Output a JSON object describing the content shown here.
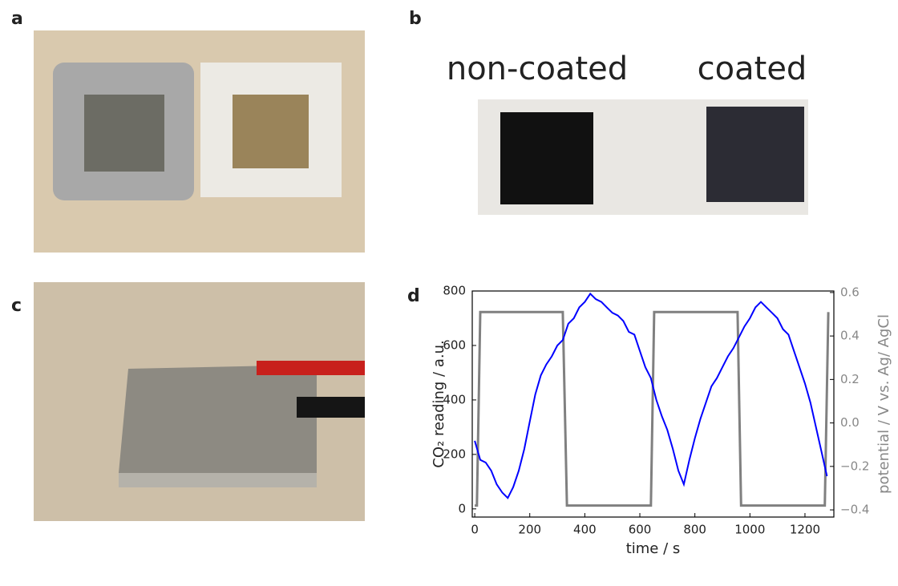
{
  "panels": {
    "a": "a",
    "b": "b",
    "c": "c",
    "d": "d"
  },
  "captions": {
    "non_coated": "non-coated",
    "coated": "coated"
  },
  "chart_data": {
    "type": "line",
    "x_label": "time / s",
    "y_label": "CO₂ reading / a.u.",
    "y2_label": "potential / V vs. Ag/ AgCl",
    "xlim": [
      -9,
      1305
    ],
    "xticks": [
      0,
      200,
      400,
      600,
      800,
      1000,
      1200
    ],
    "ylim": [
      -30,
      800
    ],
    "yticks": [
      0,
      200,
      400,
      600,
      800
    ],
    "y2lim": [
      -0.433,
      0.607
    ],
    "y2ticks": [
      {
        "value": -0.4,
        "label": "−0.4"
      },
      {
        "value": -0.2,
        "label": "−0.2"
      },
      {
        "value": 0,
        "label": "0.0"
      },
      0.2,
      0.4,
      0.6
    ],
    "series": [
      {
        "color": "#0000ff",
        "axis": "y",
        "x": [
          0,
          20,
          40,
          60,
          80,
          100,
          120,
          140,
          160,
          180,
          200,
          220,
          240,
          260,
          280,
          300,
          320,
          340,
          360,
          380,
          400,
          420,
          440,
          460,
          480,
          500,
          520,
          540,
          560,
          580,
          600,
          620,
          640,
          660,
          680,
          700,
          720,
          740,
          760,
          780,
          800,
          820,
          840,
          860,
          880,
          900,
          920,
          940,
          960,
          980,
          1000,
          1020,
          1040,
          1060,
          1080,
          1100,
          1120,
          1140,
          1160,
          1180,
          1200,
          1220,
          1240,
          1260,
          1280
        ],
        "values": [
          250,
          180,
          170,
          140,
          90,
          60,
          40,
          80,
          140,
          220,
          320,
          420,
          490,
          530,
          560,
          600,
          620,
          680,
          700,
          740,
          760,
          790,
          770,
          760,
          740,
          720,
          710,
          690,
          650,
          640,
          580,
          520,
          480,
          400,
          340,
          290,
          220,
          140,
          90,
          180,
          260,
          330,
          390,
          450,
          480,
          520,
          560,
          590,
          630,
          670,
          700,
          740,
          760,
          740,
          720,
          700,
          660,
          640,
          580,
          520,
          460,
          390,
          300,
          210,
          120
        ]
      },
      {
        "color": "#808080",
        "axis": "y2",
        "x": [
          0,
          8,
          20,
          320,
          335,
          640,
          652,
          955,
          968,
          1272,
          1285
        ],
        "values": [
          -0.38,
          -0.38,
          0.51,
          0.51,
          -0.38,
          -0.38,
          0.51,
          0.51,
          -0.38,
          -0.38,
          0.51
        ]
      }
    ]
  }
}
